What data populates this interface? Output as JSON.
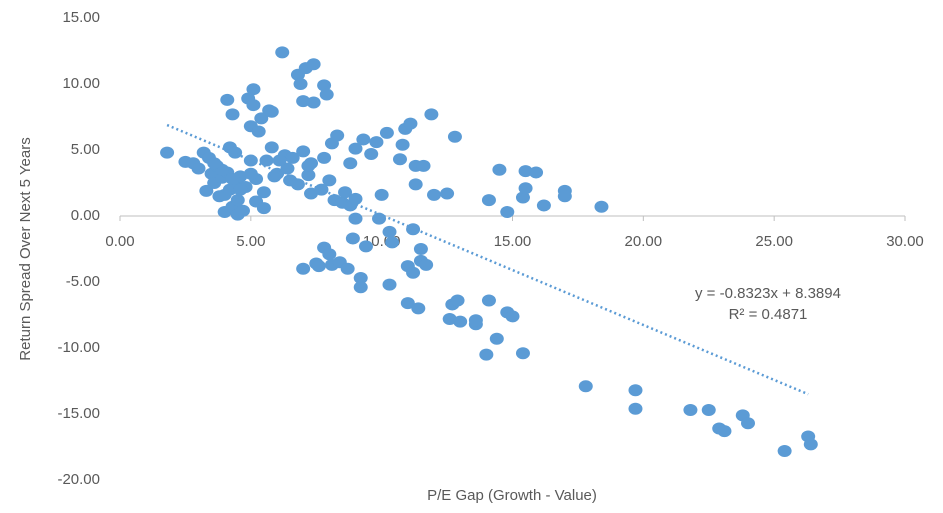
{
  "chart_data": {
    "type": "scatter",
    "x_label": "P/E Gap (Growth - Value)",
    "y_label": "Return Spread Over Next 5 Years",
    "color": "#5b9bd5",
    "xlim": [
      0,
      30
    ],
    "ylim": [
      -20,
      15
    ],
    "xticks": [
      {
        "value": 0,
        "label": "0.00"
      },
      {
        "value": 5,
        "label": "5.00"
      },
      {
        "value": 10,
        "label": "10.00"
      },
      {
        "value": 15,
        "label": "15.00"
      },
      {
        "value": 20,
        "label": "20.00"
      },
      {
        "value": 25,
        "label": "25.00"
      },
      {
        "value": 30,
        "label": "30.00"
      }
    ],
    "yticks": [
      {
        "value": 15,
        "label": "15.00"
      },
      {
        "value": 10,
        "label": "10.00"
      },
      {
        "value": 5,
        "label": "5.00"
      },
      {
        "value": 0,
        "label": "0.00"
      },
      {
        "value": -5,
        "label": "-5.00"
      },
      {
        "value": -10,
        "label": "-10.00"
      },
      {
        "value": -15,
        "label": "-15.00"
      },
      {
        "value": -20,
        "label": "-20.00"
      }
    ],
    "trendline": {
      "slope": -0.8323,
      "intercept": 8.3894,
      "x_range": [
        1.8,
        26.3
      ],
      "color": "#5b9bd5"
    },
    "trendline_label": "y = -0.8323x + 8.3894",
    "r_squared_label": "R² = 0.4871",
    "x": [
      1.8,
      2.5,
      2.8,
      3.0,
      3.2,
      3.3,
      3.4,
      3.5,
      3.6,
      3.7,
      3.8,
      3.9,
      4.0,
      4.0,
      4.1,
      4.1,
      4.2,
      4.2,
      4.3,
      4.3,
      4.4,
      4.4,
      4.5,
      4.5,
      4.6,
      4.7,
      4.8,
      4.9,
      5.0,
      5.0,
      5.1,
      5.1,
      5.2,
      5.2,
      5.3,
      5.4,
      5.5,
      5.5,
      5.6,
      5.7,
      5.8,
      5.8,
      5.9,
      6.0,
      6.2,
      6.3,
      6.4,
      6.5,
      6.6,
      6.8,
      6.9,
      7.0,
      7.0,
      7.0,
      7.1,
      7.2,
      7.3,
      7.3,
      7.4,
      7.4,
      7.5,
      7.6,
      7.7,
      7.8,
      7.8,
      7.8,
      7.9,
      8.0,
      8.0,
      8.1,
      8.1,
      8.2,
      8.3,
      8.4,
      8.5,
      8.6,
      8.7,
      8.8,
      8.8,
      8.9,
      9.0,
      9.0,
      9.0,
      9.2,
      9.2,
      9.3,
      9.4,
      9.6,
      9.8,
      9.9,
      10.0,
      10.2,
      10.3,
      10.3,
      10.4,
      10.7,
      10.8,
      10.9,
      11.0,
      11.0,
      11.1,
      11.2,
      11.2,
      11.3,
      11.3,
      11.4,
      11.5,
      11.5,
      11.6,
      11.7,
      11.9,
      12.0,
      12.5,
      12.6,
      12.7,
      12.8,
      12.9,
      13.0,
      13.6,
      13.6,
      14.0,
      14.1,
      14.1,
      14.4,
      14.5,
      14.8,
      14.8,
      15.0,
      15.4,
      15.4,
      15.5,
      15.5,
      15.9,
      16.2,
      17.0,
      17.0,
      17.8,
      18.4,
      19.7,
      19.7,
      21.8,
      22.5,
      22.9,
      23.1,
      23.8,
      24.0,
      25.4,
      26.3,
      26.4,
      3.9,
      4.6,
      5.0,
      6.8,
      7.2,
      6.1,
      4.3,
      3.6
    ],
    "values": [
      4.8,
      4.1,
      4.0,
      3.6,
      4.8,
      1.9,
      4.4,
      3.2,
      2.5,
      3.8,
      1.5,
      2.9,
      0.3,
      1.6,
      3.3,
      8.8,
      5.2,
      2.0,
      7.7,
      0.7,
      4.8,
      2.6,
      0.1,
      1.2,
      3.0,
      0.4,
      2.2,
      8.9,
      6.8,
      4.2,
      9.6,
      8.4,
      2.8,
      1.1,
      6.4,
      7.4,
      0.6,
      1.8,
      4.2,
      8.0,
      5.2,
      7.9,
      3.0,
      3.2,
      12.4,
      4.6,
      3.6,
      2.7,
      4.4,
      10.7,
      10.0,
      8.7,
      4.9,
      -4.0,
      11.2,
      3.1,
      1.7,
      4.0,
      11.5,
      8.6,
      -3.6,
      -3.8,
      2.0,
      -2.4,
      9.9,
      4.4,
      9.2,
      2.7,
      -2.9,
      5.5,
      -3.7,
      1.2,
      6.1,
      -3.5,
      1.0,
      1.8,
      -4.0,
      4.0,
      0.8,
      -1.7,
      -0.2,
      1.3,
      5.1,
      -4.7,
      -5.4,
      5.8,
      -2.3,
      4.7,
      5.6,
      -0.2,
      1.6,
      6.3,
      -1.2,
      -5.2,
      -2.0,
      4.3,
      5.4,
      6.6,
      -3.8,
      -6.6,
      7.0,
      -1.0,
      -4.3,
      3.8,
      2.4,
      -7.0,
      -2.5,
      -3.4,
      3.8,
      -3.7,
      7.7,
      1.6,
      1.7,
      -7.8,
      -6.7,
      6.0,
      -6.4,
      -8.0,
      -8.2,
      -7.9,
      -10.5,
      -6.4,
      1.2,
      -9.3,
      3.5,
      0.3,
      -7.3,
      -7.6,
      -10.4,
      1.4,
      3.4,
      2.1,
      3.3,
      0.8,
      1.9,
      1.5,
      -12.9,
      0.7,
      -13.2,
      -14.6,
      -14.7,
      -14.7,
      -16.1,
      -16.3,
      -15.1,
      -15.7,
      -17.8,
      -16.7,
      -17.3,
      3.5,
      2.0,
      3.2,
      2.4,
      3.8,
      4.2,
      2.8,
      4.0
    ]
  }
}
